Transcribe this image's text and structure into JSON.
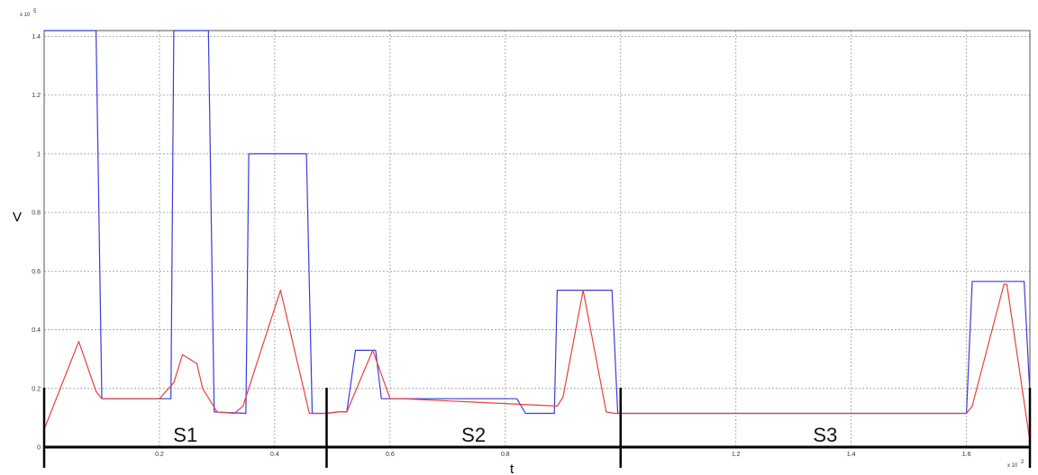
{
  "chart_data": {
    "type": "line",
    "title": "",
    "xlabel": "t",
    "ylabel": "V",
    "x_multiplier": "x 10",
    "x_multiplier_exp": "2",
    "y_multiplier": "x 10",
    "y_multiplier_exp": "5",
    "xlim": [
      0,
      1.71
    ],
    "ylim": [
      0,
      1.42
    ],
    "x_ticks": [
      "0.2",
      "0.4",
      "0.6",
      "0.8",
      "1",
      "1.2",
      "1.4",
      "1.6"
    ],
    "y_ticks": [
      "0",
      "0.2",
      "0.4",
      "0.6",
      "0.8",
      "1",
      "1.2",
      "1.4"
    ],
    "grid": true,
    "series": [
      {
        "color": "#3b3bdf",
        "x": [
          0,
          0.09,
          0.1,
          0.22,
          0.225,
          0.285,
          0.295,
          0.35,
          0.355,
          0.455,
          0.465,
          0.49,
          0.51,
          0.525,
          0.54,
          0.575,
          0.585,
          0.82,
          0.835,
          0.885,
          0.89,
          0.985,
          0.995,
          1.6,
          1.61,
          1.7,
          1.71
        ],
        "y": [
          1.42,
          1.42,
          0.165,
          0.165,
          1.42,
          1.42,
          0.12,
          0.115,
          1.0,
          1.0,
          0.115,
          0.115,
          0.12,
          0.12,
          0.33,
          0.33,
          0.165,
          0.165,
          0.115,
          0.115,
          0.535,
          0.535,
          0.115,
          0.115,
          0.565,
          0.565,
          0.18
        ]
      },
      {
        "color": "#e8413a",
        "x": [
          0,
          0.06,
          0.09,
          0.1,
          0.2,
          0.225,
          0.24,
          0.265,
          0.275,
          0.3,
          0.33,
          0.345,
          0.41,
          0.46,
          0.49,
          0.51,
          0.525,
          0.57,
          0.6,
          0.62,
          0.89,
          0.9,
          0.935,
          0.975,
          0.99,
          1.6,
          1.61,
          1.665,
          1.67,
          1.71
        ],
        "y": [
          0.06,
          0.36,
          0.19,
          0.165,
          0.165,
          0.22,
          0.315,
          0.285,
          0.2,
          0.12,
          0.115,
          0.14,
          0.535,
          0.115,
          0.115,
          0.12,
          0.12,
          0.33,
          0.165,
          0.165,
          0.14,
          0.17,
          0.535,
          0.12,
          0.115,
          0.115,
          0.14,
          0.555,
          0.555,
          0.02
        ]
      }
    ],
    "segments": [
      {
        "label": "S1",
        "start": 0.0,
        "end": 0.49
      },
      {
        "label": "S2",
        "start": 0.49,
        "end": 1.0
      },
      {
        "label": "S3",
        "start": 1.0,
        "end": 1.71
      }
    ]
  }
}
